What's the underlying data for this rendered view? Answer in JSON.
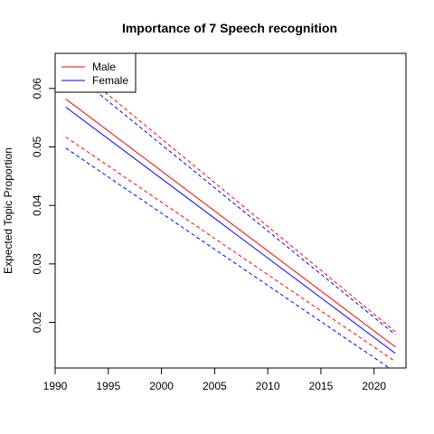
{
  "chart_data": {
    "type": "line",
    "title": "Importance of 7 Speech recognition",
    "xlabel": "",
    "ylabel": "Expected Topic Proportion",
    "xlim": [
      1990,
      2023
    ],
    "ylim": [
      0.0122,
      0.066
    ],
    "x_ticks": [
      1990,
      1995,
      2000,
      2005,
      2010,
      2015,
      2020
    ],
    "y_ticks": [
      0.02,
      0.03,
      0.04,
      0.05,
      0.06
    ],
    "y_tick_labels": [
      "0.02",
      "0.03",
      "0.04",
      "0.05",
      "0.06"
    ],
    "grid": false,
    "legend_position": "top-left",
    "x": [
      1991,
      2022
    ],
    "series": [
      {
        "name": "Male",
        "color": "#ff0000",
        "style": "solid",
        "values": [
          0.0582,
          0.0158
        ]
      },
      {
        "name": "",
        "color": "#ff0000",
        "style": "dashed",
        "values": [
          0.0649,
          0.0184
        ]
      },
      {
        "name": "",
        "color": "#ff0000",
        "style": "dashed",
        "values": [
          0.0517,
          0.0133
        ]
      },
      {
        "name": "Female",
        "color": "#0000ff",
        "style": "solid",
        "values": [
          0.0568,
          0.0147
        ]
      },
      {
        "name": "",
        "color": "#0000ff",
        "style": "dashed",
        "values": [
          0.0637,
          0.0179
        ]
      },
      {
        "name": "",
        "color": "#0000ff",
        "style": "dashed",
        "values": [
          0.0498,
          0.0115
        ]
      }
    ]
  }
}
